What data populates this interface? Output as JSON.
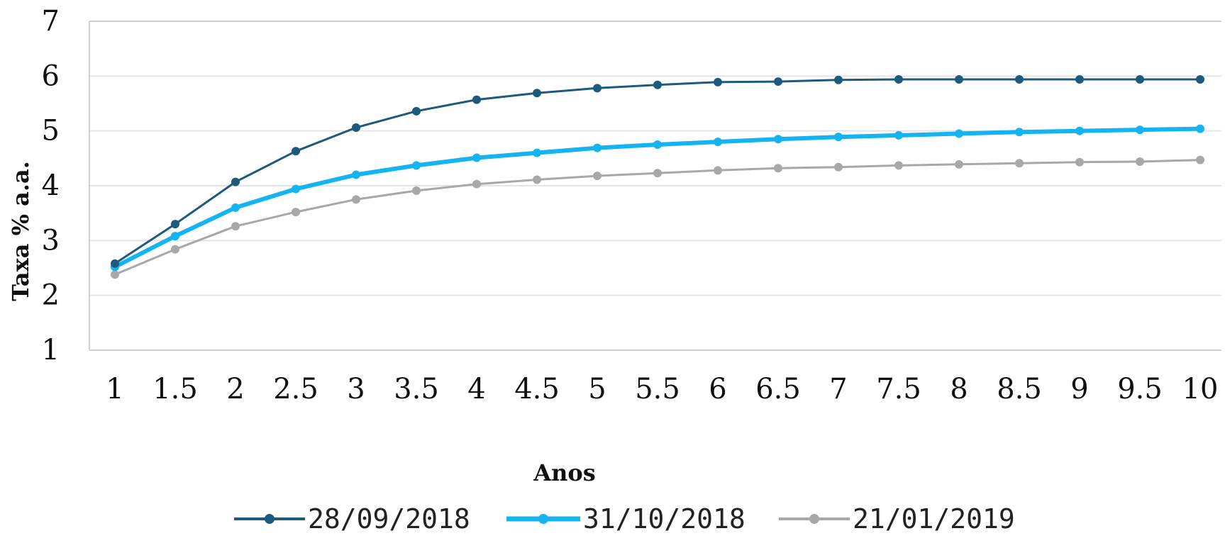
{
  "chart_data": {
    "type": "line",
    "title": "",
    "xlabel": "Anos",
    "ylabel": "Taxa % a.a.",
    "x": [
      1,
      1.5,
      2,
      2.5,
      3,
      3.5,
      4,
      4.5,
      5,
      5.5,
      6,
      6.5,
      7,
      7.5,
      8,
      8.5,
      9,
      9.5,
      10
    ],
    "x_tick_labels": [
      "1",
      "1.5",
      "2",
      "2.5",
      "3",
      "3.5",
      "4",
      "4.5",
      "5",
      "5.5",
      "6",
      "6.5",
      "7",
      "7.5",
      "8",
      "8.5",
      "9",
      "9.5",
      "10"
    ],
    "ylim": [
      1,
      7
    ],
    "y_ticks": [
      "1",
      "2",
      "3",
      "4",
      "5",
      "6",
      "7"
    ],
    "grid": "horizontal",
    "legend_position": "bottom",
    "series": [
      {
        "name": "28/09/2018",
        "color": "#1c5a7e",
        "values": [
          2.58,
          3.3,
          4.07,
          4.63,
          5.06,
          5.36,
          5.57,
          5.69,
          5.78,
          5.84,
          5.89,
          5.9,
          5.93,
          5.94,
          5.94,
          5.94,
          5.94,
          5.94,
          5.94
        ]
      },
      {
        "name": "31/10/2018",
        "color": "#14b4f0",
        "values": [
          2.52,
          3.08,
          3.6,
          3.94,
          4.2,
          4.37,
          4.51,
          4.6,
          4.69,
          4.75,
          4.8,
          4.85,
          4.89,
          4.92,
          4.95,
          4.98,
          5.0,
          5.02,
          5.04
        ]
      },
      {
        "name": "21/01/2019",
        "color": "#a8a8a8",
        "values": [
          2.38,
          2.84,
          3.26,
          3.52,
          3.75,
          3.91,
          4.03,
          4.11,
          4.18,
          4.23,
          4.28,
          4.32,
          4.34,
          4.37,
          4.39,
          4.41,
          4.43,
          4.44,
          4.47
        ]
      }
    ]
  }
}
